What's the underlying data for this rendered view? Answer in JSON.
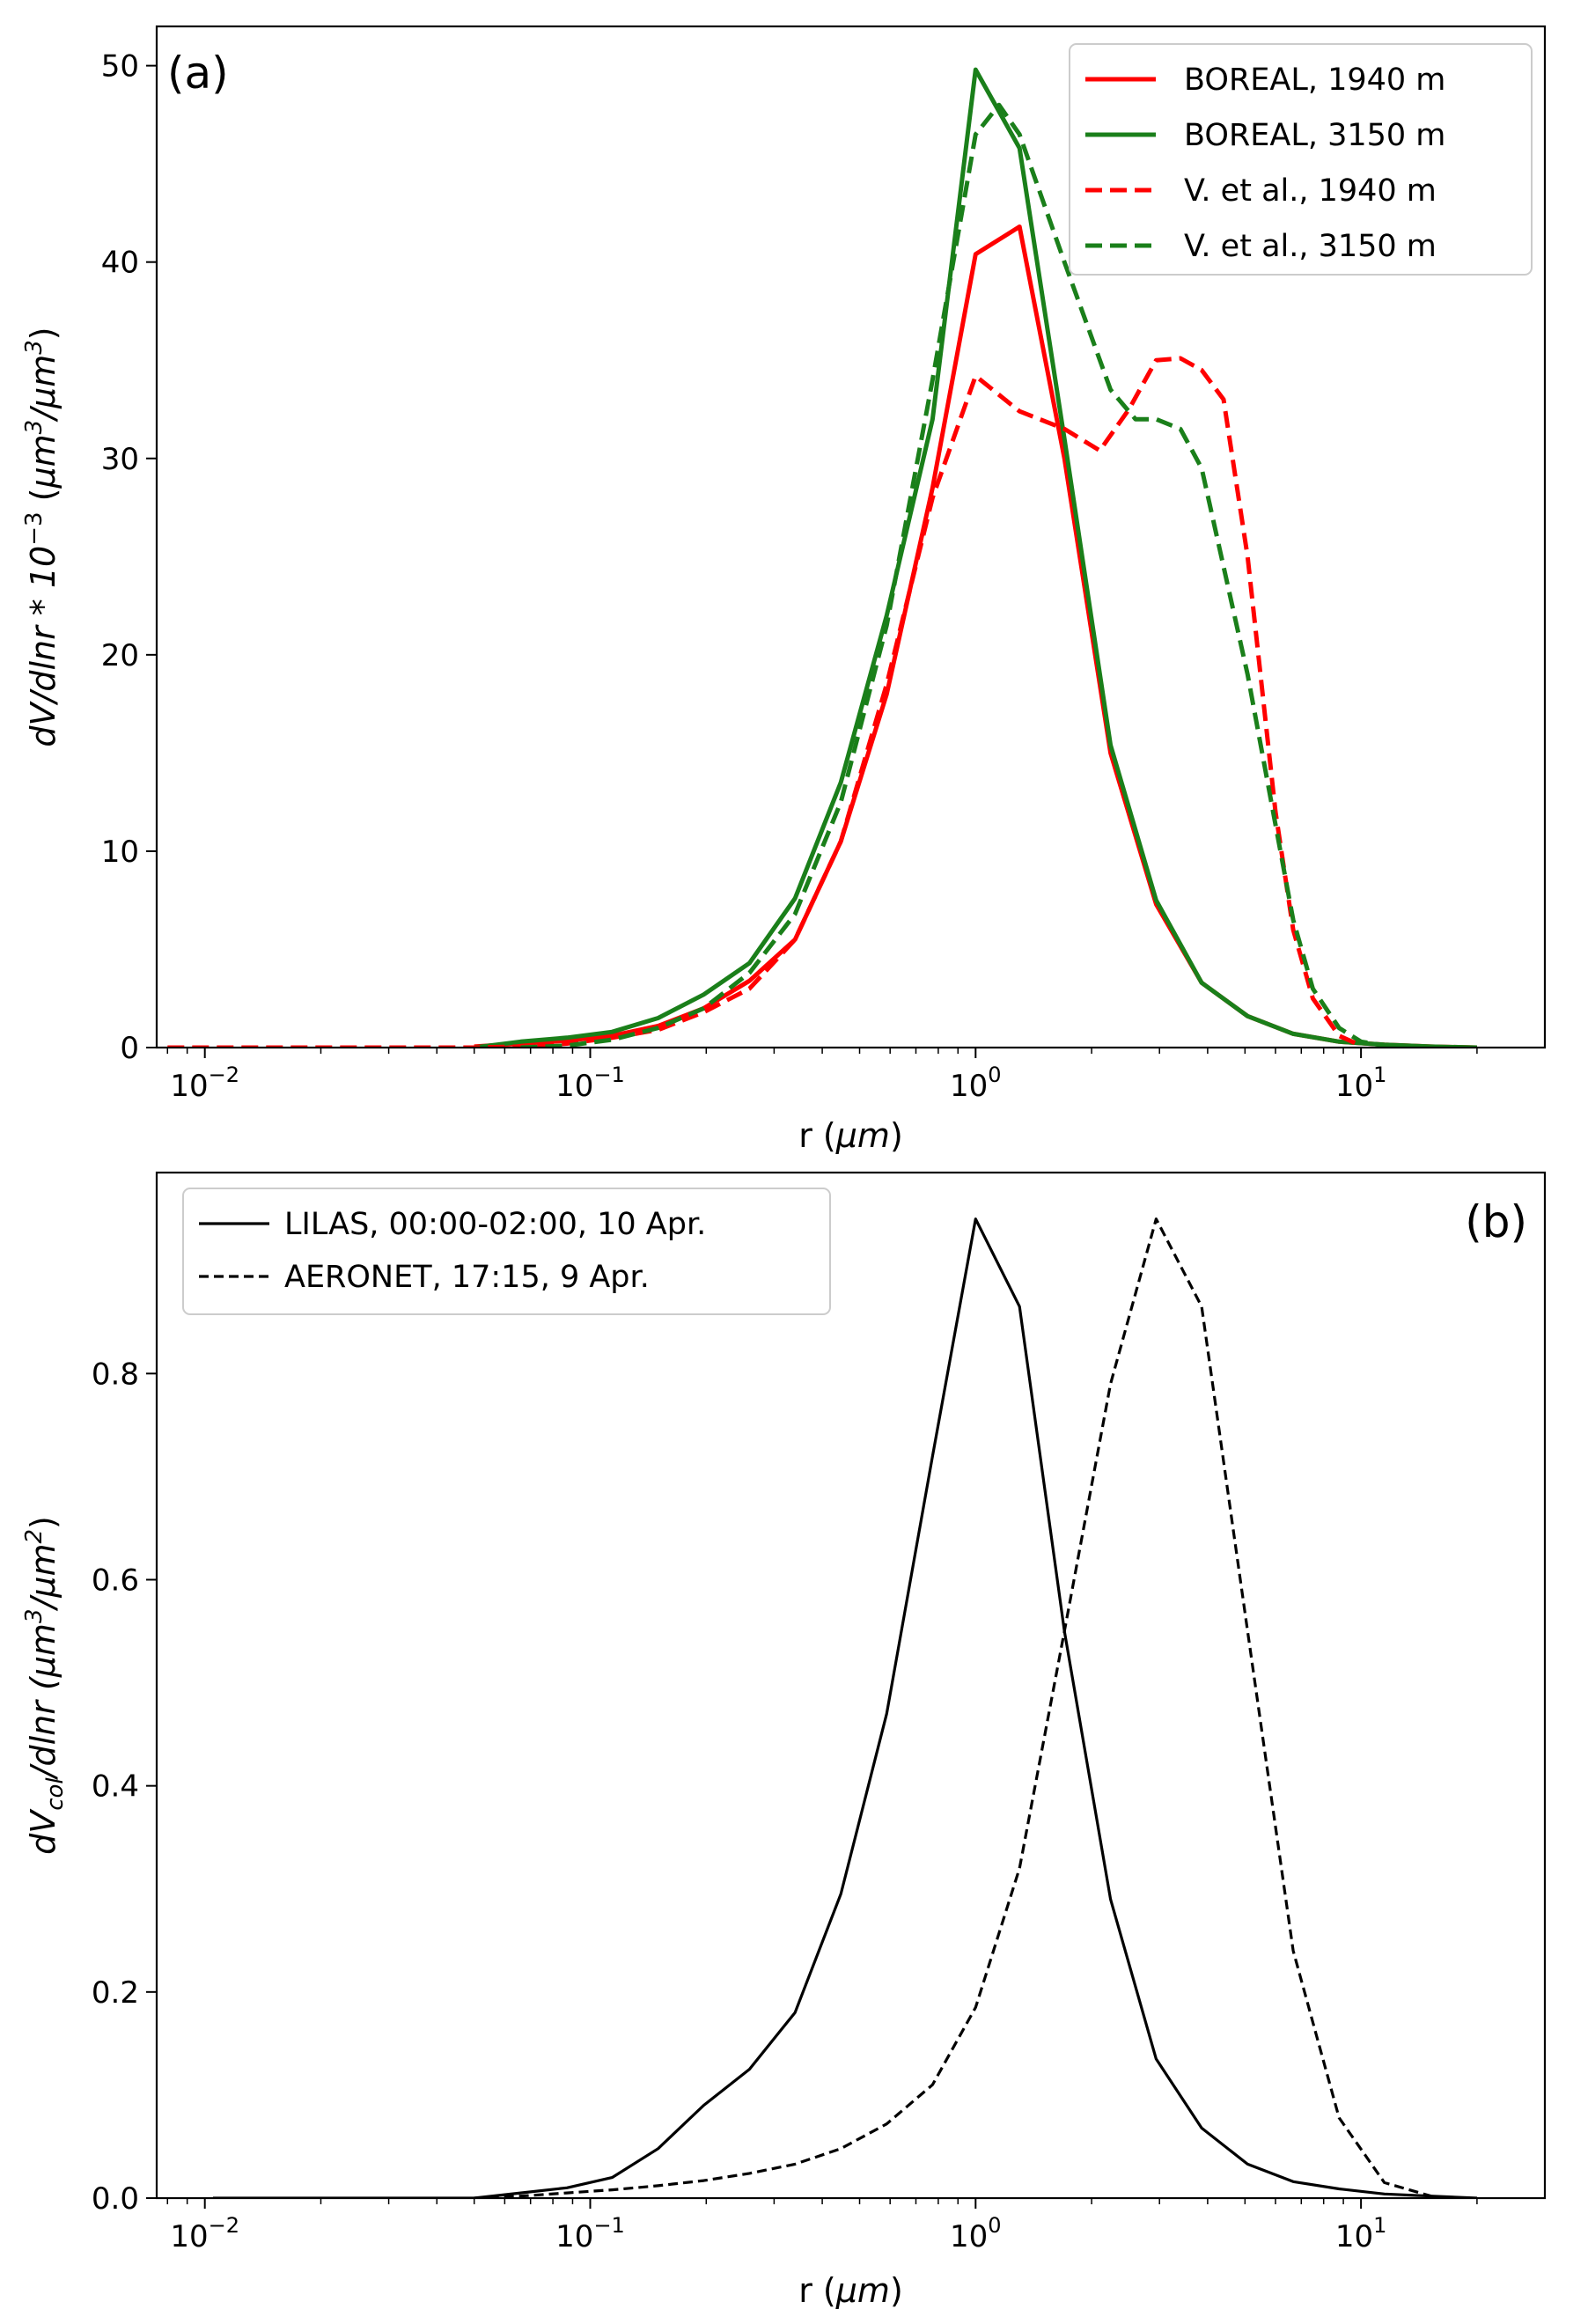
{
  "figure": {
    "background": "#ffffff"
  },
  "chart_data": [
    {
      "type": "line",
      "panel_label": "(a)",
      "xscale": "log",
      "xlim": [
        0.0075,
        30
      ],
      "ylim": [
        0,
        52
      ],
      "xticks": [
        {
          "value": 0.01,
          "base": "10",
          "exp": "−2"
        },
        {
          "value": 0.1,
          "base": "10",
          "exp": "−1"
        },
        {
          "value": 1,
          "base": "10",
          "exp": "0"
        },
        {
          "value": 10,
          "base": "10",
          "exp": "1"
        }
      ],
      "yticks": [
        0,
        10,
        20,
        30,
        40,
        50
      ],
      "xlabel": {
        "prefix": "r (",
        "unit": "μm",
        "suffix": ")"
      },
      "ylabel": {
        "main": "dV/dlnr",
        "mult": " * 10",
        "exp1": "−3",
        "open": " (",
        "u1": "μm",
        "e2": "3",
        "slash": "/",
        "u2": "μm",
        "e3": "3",
        "close": ")"
      },
      "legend_position": "top-right",
      "series": [
        {
          "name": "BOREAL, 1940 m",
          "color": "#ff0000",
          "dash": "solid",
          "x": [
            0.05,
            0.066,
            0.087,
            0.114,
            0.15,
            0.197,
            0.259,
            0.34,
            0.447,
            0.588,
            0.773,
            1.0,
            1.3,
            1.7,
            2.24,
            2.94,
            3.86,
            5.08,
            6.67,
            8.77,
            11.5,
            15.2,
            20.0
          ],
          "y": [
            0.05,
            0.2,
            0.35,
            0.6,
            1.1,
            2.0,
            3.4,
            5.5,
            10.5,
            18.0,
            28.5,
            40.4,
            41.8,
            30.0,
            15.0,
            7.3,
            3.3,
            1.6,
            0.7,
            0.3,
            0.15,
            0.05,
            0.0
          ]
        },
        {
          "name": "BOREAL, 3150 m",
          "color": "#1a7f1a",
          "dash": "solid",
          "x": [
            0.05,
            0.066,
            0.087,
            0.114,
            0.15,
            0.197,
            0.259,
            0.34,
            0.447,
            0.588,
            0.773,
            1.0,
            1.3,
            1.7,
            2.24,
            2.94,
            3.86,
            5.08,
            6.67,
            8.77,
            11.5,
            15.2,
            20.0
          ],
          "y": [
            0.0,
            0.3,
            0.5,
            0.8,
            1.5,
            2.7,
            4.3,
            7.6,
            13.5,
            22.0,
            32.0,
            49.8,
            45.8,
            31.0,
            15.4,
            7.5,
            3.3,
            1.6,
            0.7,
            0.3,
            0.15,
            0.05,
            0.0
          ]
        },
        {
          "name": "V. et al., 1940 m",
          "color": "#ff0000",
          "dash": "dashed",
          "x": [
            0.008,
            0.05,
            0.066,
            0.087,
            0.114,
            0.15,
            0.197,
            0.259,
            0.34,
            0.447,
            0.588,
            0.773,
            1.0,
            1.3,
            1.7,
            2.1,
            2.5,
            2.94,
            3.4,
            3.86,
            4.4,
            5.08,
            6.0,
            6.67,
            7.5,
            8.77,
            10.0
          ],
          "y": [
            0.0,
            0.0,
            0.05,
            0.2,
            0.5,
            0.9,
            1.8,
            3.0,
            5.5,
            10.5,
            18.5,
            28.0,
            34.2,
            32.4,
            31.5,
            30.4,
            32.5,
            35.0,
            35.1,
            34.5,
            33.0,
            25.0,
            12.0,
            6.0,
            2.5,
            0.6,
            0.1
          ]
        },
        {
          "name": "V. et al., 3150 m",
          "color": "#1a7f1a",
          "dash": "dashed",
          "x": [
            0.066,
            0.087,
            0.114,
            0.15,
            0.197,
            0.259,
            0.34,
            0.447,
            0.588,
            0.773,
            1.0,
            1.15,
            1.3,
            1.7,
            2.24,
            2.6,
            2.94,
            3.4,
            3.86,
            5.08,
            6.67,
            7.5,
            8.77,
            10.0,
            11.5
          ],
          "y": [
            0.0,
            0.1,
            0.4,
            1.0,
            2.0,
            3.8,
            6.8,
            12.5,
            21.5,
            34.0,
            46.5,
            48.0,
            46.5,
            40.0,
            33.5,
            32.0,
            32.0,
            31.5,
            29.5,
            19.0,
            6.5,
            3.0,
            1.0,
            0.3,
            0.1
          ]
        }
      ]
    },
    {
      "type": "line",
      "panel_label": "(b)",
      "xscale": "log",
      "xlim": [
        0.0075,
        30
      ],
      "ylim": [
        0,
        0.995
      ],
      "xticks": [
        {
          "value": 0.01,
          "base": "10",
          "exp": "−2"
        },
        {
          "value": 0.1,
          "base": "10",
          "exp": "−1"
        },
        {
          "value": 1,
          "base": "10",
          "exp": "0"
        },
        {
          "value": 10,
          "base": "10",
          "exp": "1"
        }
      ],
      "yticks": [
        "0.0",
        "0.2",
        "0.4",
        "0.6",
        "0.8"
      ],
      "xlabel": {
        "prefix": "r (",
        "unit": "μm",
        "suffix": ")"
      },
      "ylabel": {
        "main": "dV",
        "sub": "col",
        "mid": "/dlnr (",
        "u1": "μm",
        "e1": "3",
        "slash": "/",
        "u2": "μm",
        "e2": "2",
        "close": ")"
      },
      "legend_position": "top-left",
      "series": [
        {
          "name": "LILAS, 00:00-02:00, 10 Apr.",
          "color": "#000000",
          "dash": "solid",
          "x": [
            0.0105,
            0.05,
            0.066,
            0.087,
            0.114,
            0.15,
            0.197,
            0.259,
            0.34,
            0.447,
            0.588,
            0.773,
            1.0,
            1.3,
            1.7,
            2.24,
            2.94,
            3.86,
            5.08,
            6.67,
            8.77,
            11.5,
            15.2,
            20.0
          ],
          "y": [
            0.0,
            0.0,
            0.005,
            0.01,
            0.02,
            0.048,
            0.09,
            0.125,
            0.18,
            0.295,
            0.47,
            0.72,
            0.95,
            0.865,
            0.55,
            0.29,
            0.135,
            0.068,
            0.033,
            0.016,
            0.009,
            0.004,
            0.002,
            0.0
          ]
        },
        {
          "name": "AERONET, 17:15, 9 Apr.",
          "color": "#000000",
          "dash": "dashed",
          "x": [
            0.05,
            0.066,
            0.087,
            0.114,
            0.15,
            0.197,
            0.259,
            0.34,
            0.447,
            0.588,
            0.773,
            1.0,
            1.3,
            1.7,
            2.24,
            2.94,
            3.86,
            5.08,
            6.67,
            8.77,
            11.5,
            15.2
          ],
          "y": [
            0.0,
            0.002,
            0.005,
            0.008,
            0.012,
            0.017,
            0.024,
            0.033,
            0.048,
            0.072,
            0.11,
            0.185,
            0.32,
            0.55,
            0.79,
            0.95,
            0.865,
            0.55,
            0.24,
            0.078,
            0.015,
            0.002
          ]
        }
      ]
    }
  ]
}
